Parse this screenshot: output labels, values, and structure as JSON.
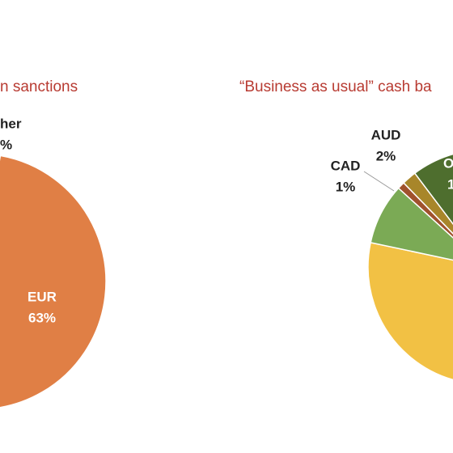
{
  "chart_data": [
    {
      "type": "pie",
      "title": "n sanctions",
      "categories": [
        "EUR"
      ],
      "values": [
        63
      ],
      "value_labels": [
        "63%"
      ],
      "colors": [
        "#e07f45"
      ],
      "annotations": [
        "her",
        "%"
      ]
    },
    {
      "type": "pie",
      "title": "“Business as usual” cash ba",
      "categories": [
        "AUD",
        "CAD"
      ],
      "values": [
        2,
        1
      ],
      "value_labels": [
        "2%",
        "1%"
      ],
      "colors": [
        "#a8862a",
        "#a0522d"
      ],
      "annotations": [
        "O",
        "1"
      ]
    }
  ]
}
